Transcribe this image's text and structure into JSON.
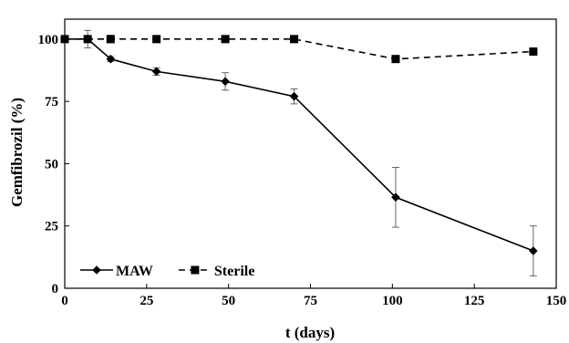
{
  "chart_data": {
    "type": "line",
    "xlabel": "t (days)",
    "ylabel": "Gemfibrozil (%)",
    "xlim": [
      0,
      150
    ],
    "ylim": [
      0,
      108
    ],
    "xticks": [
      0,
      25,
      50,
      75,
      100,
      125,
      150
    ],
    "yticks": [
      0,
      25,
      50,
      75,
      100
    ],
    "grid": false,
    "legend_position": "bottom-left",
    "series": [
      {
        "name": "MAW",
        "marker": "diamond",
        "line": "solid",
        "color": "#000000",
        "points": [
          {
            "x": 0,
            "y": 100,
            "err": 0
          },
          {
            "x": 7,
            "y": 100,
            "err": 3.5
          },
          {
            "x": 14,
            "y": 92,
            "err": 1
          },
          {
            "x": 28,
            "y": 87,
            "err": 1.5
          },
          {
            "x": 49,
            "y": 83,
            "err": 3.5
          },
          {
            "x": 70,
            "y": 77,
            "err": 3
          },
          {
            "x": 101,
            "y": 36.5,
            "err": 12
          },
          {
            "x": 143,
            "y": 15,
            "err": 10
          }
        ]
      },
      {
        "name": "Sterile",
        "marker": "square",
        "line": "dashed",
        "color": "#000000",
        "points": [
          {
            "x": 0,
            "y": 100,
            "err": 0
          },
          {
            "x": 7,
            "y": 100,
            "err": 0
          },
          {
            "x": 14,
            "y": 100,
            "err": 1.5
          },
          {
            "x": 28,
            "y": 100,
            "err": 0
          },
          {
            "x": 49,
            "y": 100,
            "err": 0
          },
          {
            "x": 70,
            "y": 100,
            "err": 0
          },
          {
            "x": 101,
            "y": 92,
            "err": 0
          },
          {
            "x": 143,
            "y": 95,
            "err": 0
          }
        ]
      }
    ]
  }
}
